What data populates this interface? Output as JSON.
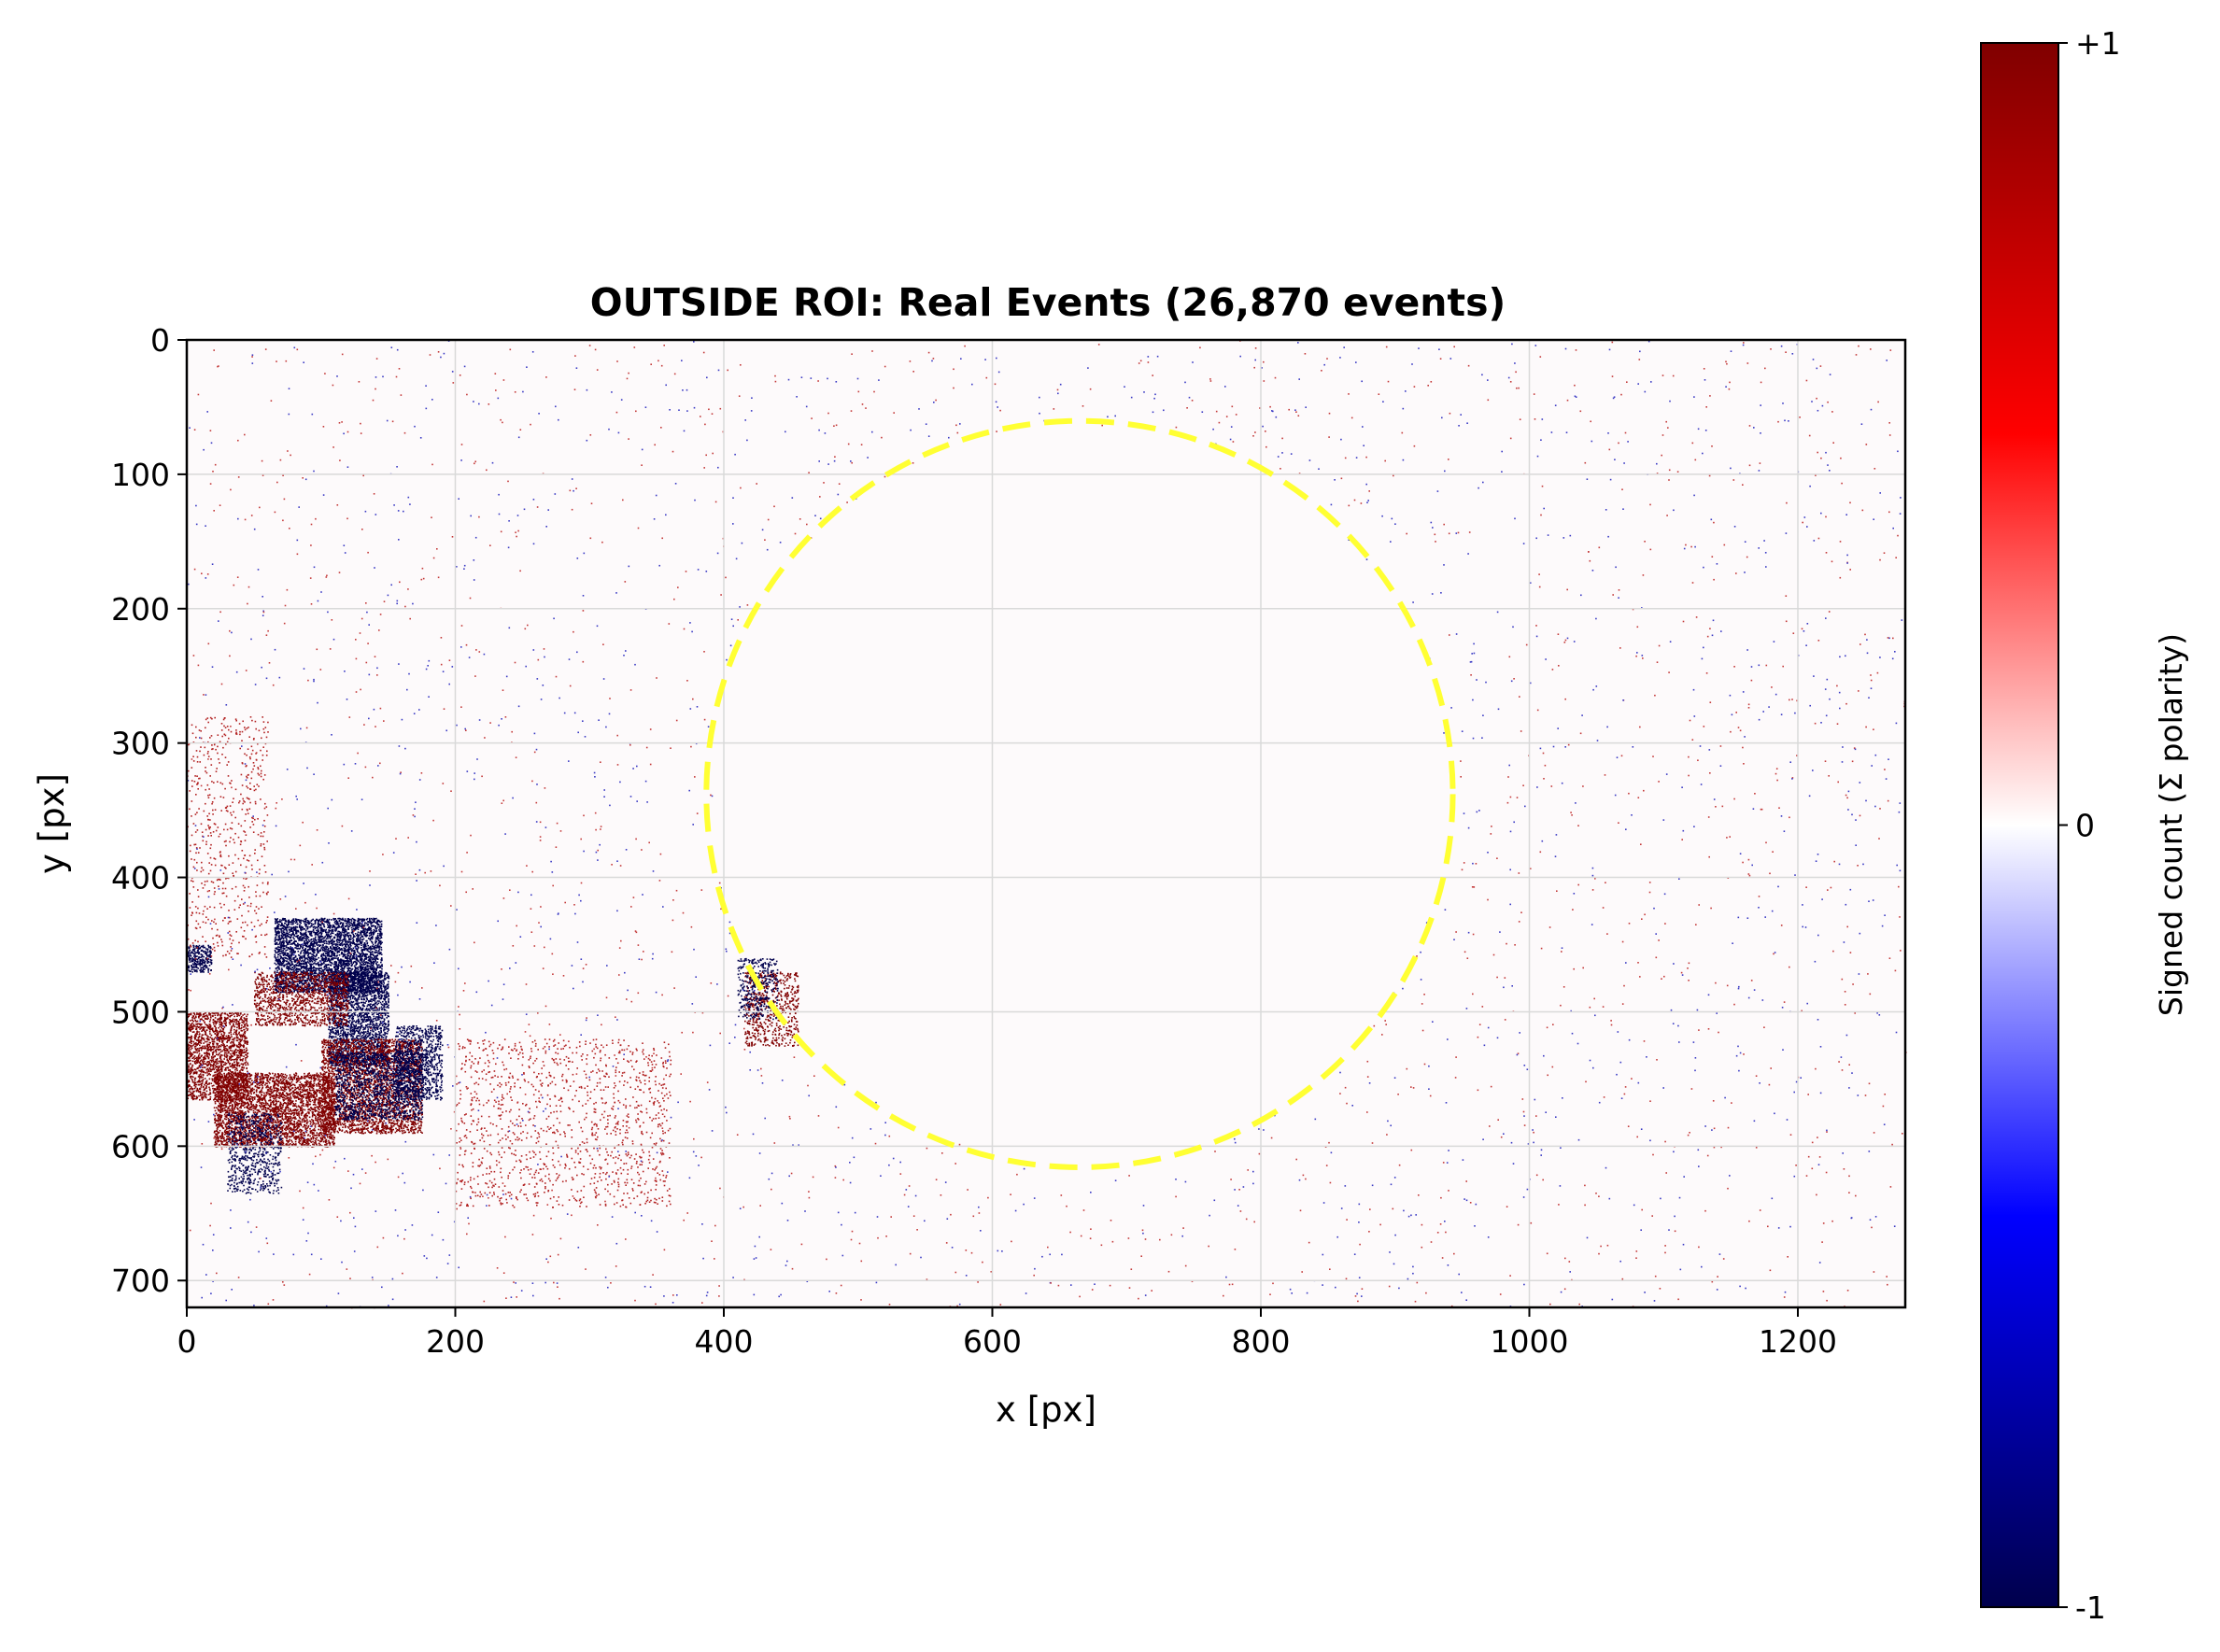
{
  "chart_data": {
    "type": "heatmap",
    "title": "OUTSIDE ROI: Real Events (26,870 events)",
    "xlabel": "x [px]",
    "ylabel": "y [px]",
    "xlim": [
      0,
      1280
    ],
    "ylim": [
      720,
      0
    ],
    "x_ticks": [
      "0",
      "200",
      "400",
      "600",
      "800",
      "1000",
      "1200"
    ],
    "y_ticks": [
      "0",
      "100",
      "200",
      "300",
      "400",
      "500",
      "600",
      "700"
    ],
    "grid": true,
    "event_count": 26870,
    "colormap": {
      "name": "seismic",
      "stops": [
        "#00004c",
        "#0000ff",
        "#ffffff",
        "#ff0000",
        "#800000"
      ],
      "min": -1,
      "max": 1
    },
    "colorbar": {
      "label": "Signed count (Σ polarity)",
      "ticks": [
        "+1",
        "0",
        "-1"
      ]
    },
    "roi_circle": {
      "center_x": 665,
      "center_y": 338,
      "radius": 278,
      "color": "#ffff33",
      "style": "dashed"
    },
    "event_clusters": [
      {
        "x": [
          65,
          145
        ],
        "y": [
          430,
          485
        ],
        "polarity": -1,
        "density": 0.9
      },
      {
        "x": [
          105,
          150
        ],
        "y": [
          470,
          540
        ],
        "polarity": -1,
        "density": 0.75
      },
      {
        "x": [
          50,
          120
        ],
        "y": [
          470,
          510
        ],
        "polarity": 1,
        "density": 0.45
      },
      {
        "x": [
          0,
          45
        ],
        "y": [
          500,
          565
        ],
        "polarity": 1,
        "density": 0.65
      },
      {
        "x": [
          20,
          110
        ],
        "y": [
          545,
          600
        ],
        "polarity": 1,
        "density": 0.75
      },
      {
        "x": [
          100,
          175
        ],
        "y": [
          520,
          590
        ],
        "polarity": 1,
        "density": 0.6
      },
      {
        "x": [
          110,
          175
        ],
        "y": [
          530,
          580
        ],
        "polarity": -1,
        "density": 0.45
      },
      {
        "x": [
          155,
          190
        ],
        "y": [
          510,
          565
        ],
        "polarity": -1,
        "density": 0.5
      },
      {
        "x": [
          0,
          18
        ],
        "y": [
          450,
          470
        ],
        "polarity": -1,
        "density": 0.8
      },
      {
        "x": [
          30,
          70
        ],
        "y": [
          575,
          635
        ],
        "polarity": -1,
        "density": 0.3
      },
      {
        "x": [
          0,
          60
        ],
        "y": [
          280,
          460
        ],
        "polarity": 1,
        "density": 0.06
      },
      {
        "x": [
          200,
          360
        ],
        "y": [
          520,
          645
        ],
        "polarity": 1,
        "density": 0.07
      },
      {
        "x": [
          415,
          455
        ],
        "y": [
          470,
          525
        ],
        "polarity": 1,
        "density": 0.3
      },
      {
        "x": [
          410,
          440
        ],
        "y": [
          460,
          505
        ],
        "polarity": -1,
        "density": 0.3
      }
    ],
    "background_noise_density": 0.004
  }
}
